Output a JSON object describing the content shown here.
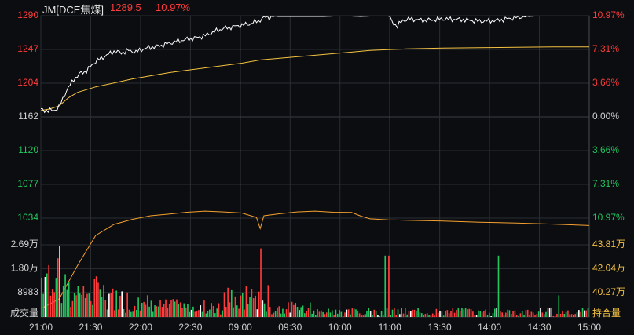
{
  "header": {
    "symbol": "JM[DCE焦煤]",
    "last_price": "1289.5",
    "change_pct": "10.97%"
  },
  "colors": {
    "background": "#0b0d10",
    "grid": "#2a2e33",
    "up": "#ff3b3b",
    "down": "#22c55e",
    "price_line": "#ffffff",
    "avg_line": "#f5c242",
    "open_interest": "#f5a030",
    "axis_text": "#d0d0d0",
    "vol_axis_right": "#f5c242"
  },
  "chart_data": [
    {
      "type": "line",
      "title": "",
      "x_ticks": [
        "21:00",
        "21:30",
        "22:00",
        "22:30",
        "09:00",
        "09:30",
        "10:00",
        "11:00",
        "13:30",
        "14:00",
        "14:30",
        "15:00"
      ],
      "y_left_ticks": [
        "1290",
        "1247",
        "1204",
        "1162",
        "1120",
        "1077",
        "1034"
      ],
      "y_right_ticks": [
        "10.97%",
        "7.31%",
        "3.66%",
        "0.00%",
        "3.66%",
        "7.31%",
        "10.97%"
      ],
      "ylim": [
        1034,
        1290
      ],
      "reference_price": 1162,
      "series": [
        {
          "key": "price",
          "x": [
            0,
            3,
            6,
            8,
            10,
            12,
            14,
            16,
            18,
            20,
            22,
            25,
            28,
            30,
            33,
            36,
            40,
            44,
            48,
            52,
            56,
            60,
            65,
            70,
            75,
            80,
            85,
            90,
            95,
            100,
            105,
            110,
            115,
            118,
            120,
            122,
            125,
            130,
            135,
            140,
            145,
            150,
            155,
            160,
            165,
            170,
            175,
            180,
            185,
            190,
            193,
            195,
            198,
            202,
            210,
            220,
            230,
            240,
            250,
            260,
            270,
            280,
            290,
            300
          ],
          "y": [
            1171,
            1170,
            1170,
            1171,
            1175,
            1185,
            1195,
            1202,
            1210,
            1213,
            1218,
            1220,
            1228,
            1232,
            1236,
            1240,
            1245,
            1243,
            1246,
            1244,
            1248,
            1250,
            1252,
            1255,
            1258,
            1260,
            1262,
            1265,
            1270,
            1274,
            1276,
            1278,
            1280,
            1283,
            1284,
            1289,
            1288,
            1289,
            1289,
            1289,
            1289,
            1289,
            1289,
            1289.5,
            1289.5,
            1289.5,
            1289,
            1289.5,
            1289.5,
            1289.5,
            1280,
            1277,
            1284,
            1286,
            1284,
            1286,
            1285,
            1283,
            1284,
            1288,
            1289.5,
            1289.5,
            1289.5,
            1289.5
          ]
        },
        {
          "key": "avg",
          "x": [
            0,
            5,
            10,
            15,
            20,
            30,
            40,
            50,
            60,
            70,
            80,
            90,
            100,
            110,
            120,
            130,
            140,
            150,
            160,
            170,
            180,
            190,
            200,
            220,
            240,
            260,
            280,
            300
          ],
          "y": [
            1170,
            1172,
            1176,
            1186,
            1193,
            1200,
            1205,
            1210,
            1214,
            1218,
            1221,
            1224,
            1227,
            1230,
            1234,
            1236,
            1238,
            1240,
            1242,
            1244,
            1246,
            1247,
            1248,
            1249,
            1249.5,
            1250,
            1250.5,
            1250.5
          ]
        }
      ]
    },
    {
      "type": "bar",
      "title": "",
      "ylabel": "成交量",
      "y_left_ticks": [
        "2.69万",
        "1.80万",
        "8983"
      ],
      "y_right_ticks": [
        "43.81万",
        "42.04万",
        "40.27万"
      ],
      "right_axis_label": "持合量",
      "ylim": [
        0,
        26900
      ],
      "bar_count": 300,
      "open_interest_line": {
        "x": [
          0,
          10,
          20,
          30,
          40,
          50,
          60,
          70,
          80,
          90,
          100,
          110,
          118,
          120,
          122,
          130,
          140,
          150,
          160,
          170,
          175,
          180,
          190,
          200,
          220,
          240,
          260,
          280,
          300
        ],
        "y": [
          403000,
          406500,
          418500,
          429500,
          433500,
          435300,
          436600,
          437200,
          437900,
          438300,
          438000,
          437600,
          436000,
          432000,
          436600,
          437300,
          438000,
          438300,
          437900,
          437800,
          436500,
          435500,
          435100,
          435000,
          434700,
          434300,
          434000,
          433600,
          433100
        ],
        "ylim": [
          400000,
          438600
        ]
      }
    }
  ]
}
